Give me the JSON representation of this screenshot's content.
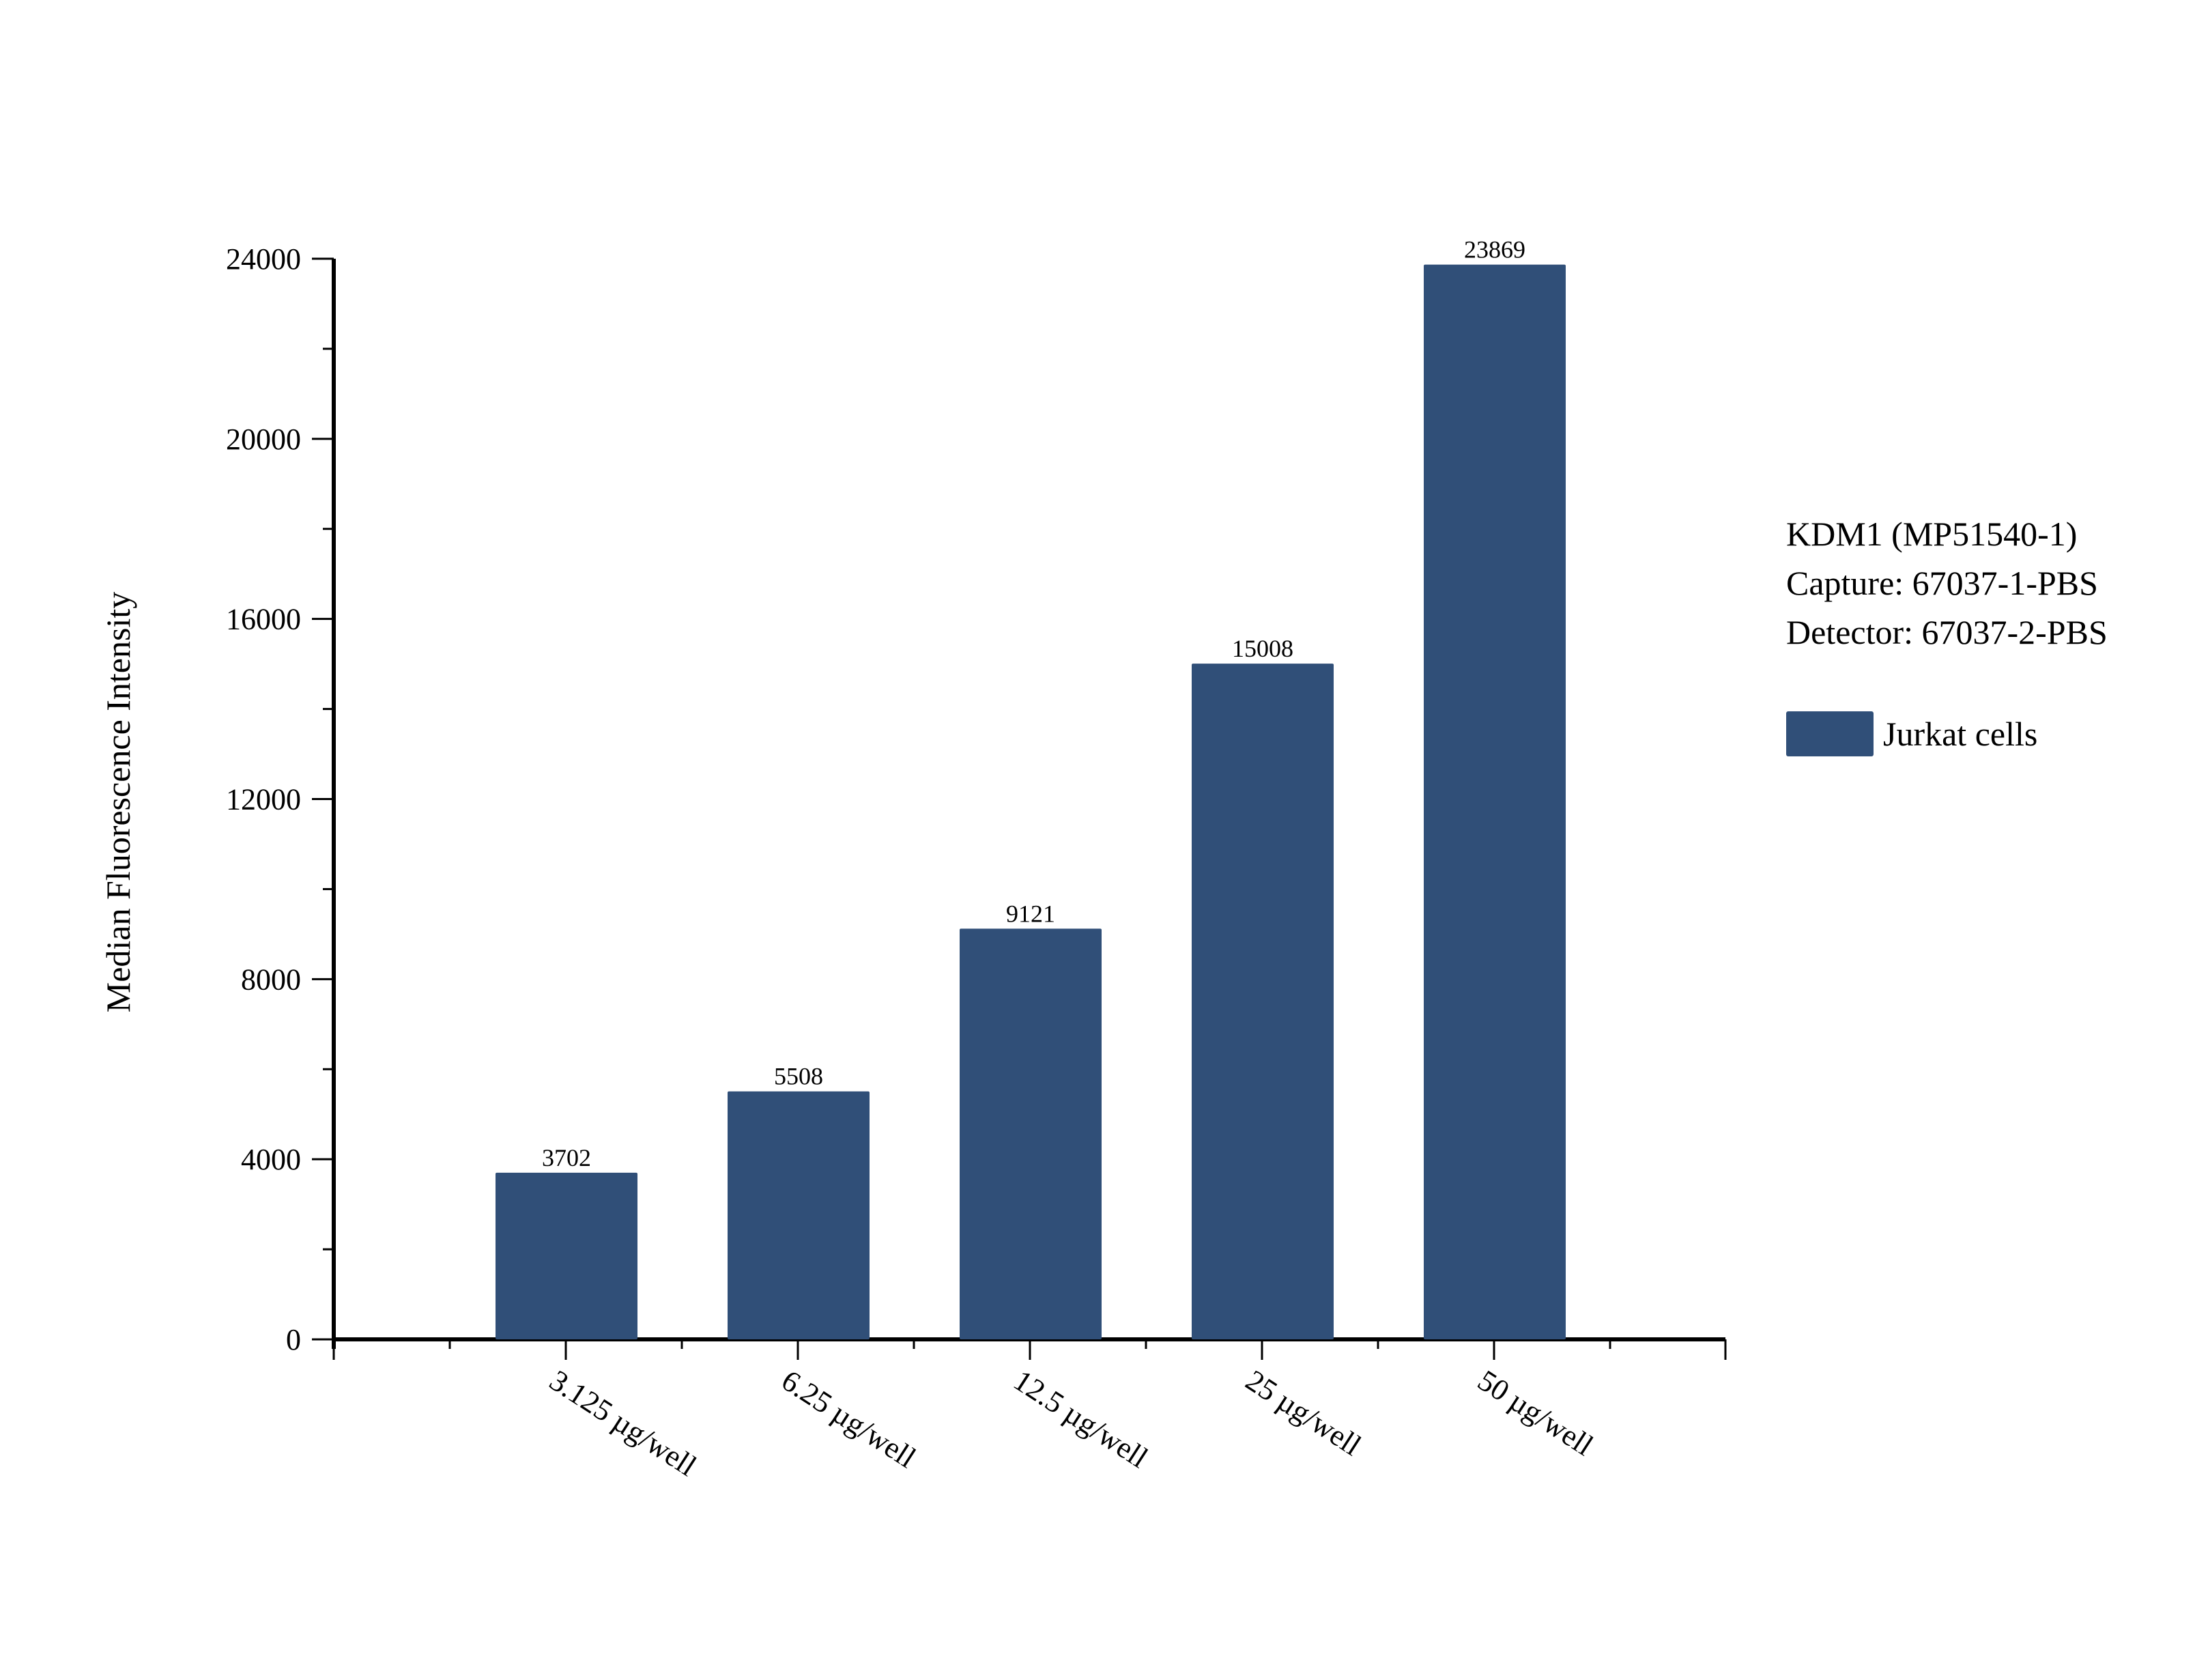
{
  "chart_data": {
    "type": "bar",
    "title": "",
    "xlabel": "",
    "ylabel": "Median Fluorescence Intensity",
    "categories": [
      "3.125  µg/well",
      "6.25 µg/well",
      "12.5 µg/well",
      "25 µg/well",
      "50 µg/well"
    ],
    "series": [
      {
        "name": "Jurkat cells",
        "values": [
          3702,
          5508,
          9121,
          15008,
          23869
        ],
        "color": "#304f78"
      }
    ],
    "data_labels": [
      "3702",
      "5508",
      "9121",
      "15008",
      "23869"
    ],
    "ylim": [
      0,
      24000
    ],
    "yticks": [
      0,
      4000,
      8000,
      12000,
      16000,
      20000,
      24000
    ],
    "ytick_labels": [
      "0",
      "4000",
      "8000",
      "12000",
      "16000",
      "20000",
      "24000"
    ],
    "grid": false,
    "legend_position": "right",
    "annotations": [
      "KDM1 (MP51540-1)",
      "Capture: 67037-1-PBS",
      "Detector: 67037-2-PBS"
    ]
  },
  "annotation": {
    "line1": "KDM1 (MP51540-1)",
    "line2": "Capture: 67037-1-PBS",
    "line3": "Detector: 67037-2-PBS"
  },
  "legend": {
    "label": "Jurkat cells",
    "color": "#304f78"
  }
}
